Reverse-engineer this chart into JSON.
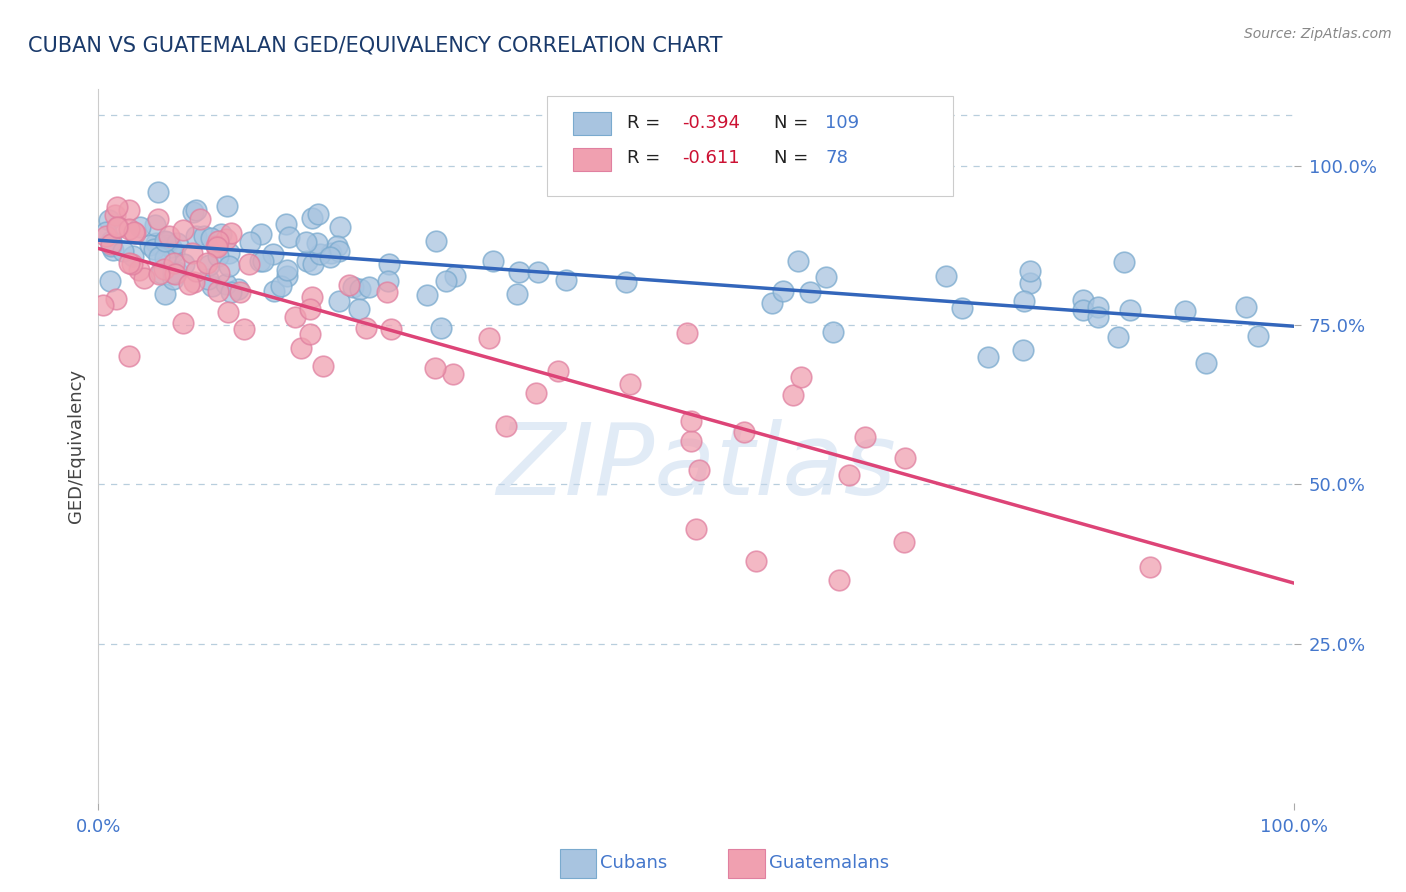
{
  "title": "CUBAN VS GUATEMALAN GED/EQUIVALENCY CORRELATION CHART",
  "source": "Source: ZipAtlas.com",
  "ylabel": "GED/Equivalency",
  "legend_r_cuban": "-0.394",
  "legend_n_cuban": "109",
  "legend_r_guatemalan": "-0.611",
  "legend_n_guatemalan": "78",
  "blue_color": "#A8C4E0",
  "pink_color": "#F0A0B0",
  "trend_blue": "#3366BB",
  "trend_pink": "#DD4477",
  "blue_trend_x": [
    0.0,
    1.0
  ],
  "blue_trend_y": [
    0.883,
    0.748
  ],
  "pink_trend_x": [
    0.0,
    1.0
  ],
  "pink_trend_y": [
    0.87,
    0.345
  ],
  "title_color": "#1A3A6B",
  "axis_color": "#4477CC",
  "background_color": "#FFFFFF",
  "grid_color": "#B8CEDD",
  "ylim": [
    0.0,
    1.12
  ],
  "xlim": [
    0.0,
    1.0
  ],
  "yticks": [
    0.25,
    0.5,
    0.75,
    1.0
  ],
  "yticklabels": [
    "25.0%",
    "50.0%",
    "75.0%",
    "100.0%"
  ],
  "xticks": [
    0.0,
    1.0
  ],
  "xticklabels": [
    "0.0%",
    "100.0%"
  ]
}
